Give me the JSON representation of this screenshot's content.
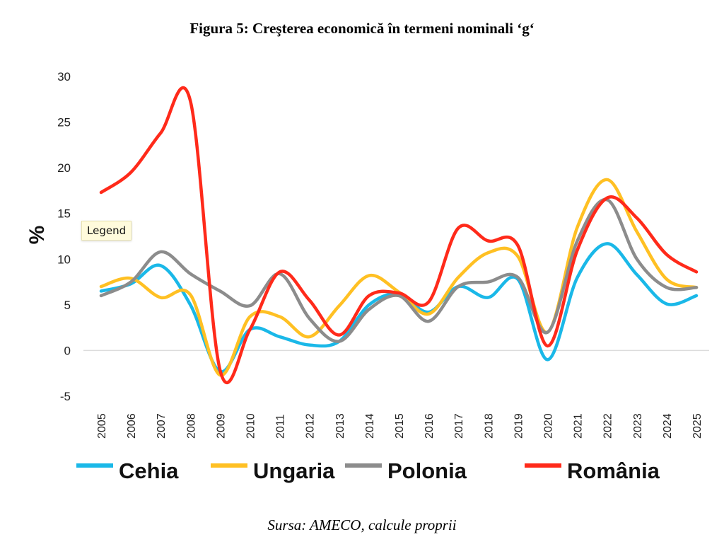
{
  "title": "Figura 5: Creşterea economică în termeni nominali ‘g‘",
  "source": "Sursa: AMECO, calcule proprii",
  "tooltip": "Legend",
  "chart_data": {
    "type": "line",
    "title": "Figura 5: Creşterea economică în termeni nominali ‘g‘",
    "xlabel": "",
    "ylabel": "%",
    "ylim": [
      -5,
      30
    ],
    "yticks": [
      -5,
      0,
      5,
      10,
      15,
      20,
      25,
      30
    ],
    "grid": "zero-line only",
    "legend_position": "bottom",
    "x": [
      "2005",
      "2006",
      "2007",
      "2008",
      "2009",
      "2010",
      "2011",
      "2012",
      "2013",
      "2014",
      "2015",
      "2016",
      "2017",
      "2018",
      "2019",
      "2020",
      "2021",
      "2022",
      "2023",
      "2024",
      "2025"
    ],
    "series": [
      {
        "name": "Cehia",
        "color": "#1ab8e8",
        "values": [
          6.5,
          7.3,
          9.3,
          5.0,
          -2.3,
          2.3,
          1.5,
          0.6,
          1.0,
          5.0,
          6.2,
          4.2,
          7.0,
          5.8,
          7.8,
          -1.0,
          8.0,
          11.7,
          8.3,
          5.1,
          6.0
        ]
      },
      {
        "name": "Ungaria",
        "color": "#ffc023",
        "values": [
          7.0,
          7.9,
          5.8,
          6.1,
          -2.7,
          3.7,
          3.7,
          1.5,
          4.9,
          8.2,
          6.4,
          4.0,
          8.0,
          10.7,
          10.3,
          2.0,
          13.5,
          18.7,
          13.0,
          7.8,
          6.9
        ]
      },
      {
        "name": "Polonia",
        "color": "#8c8c8c",
        "values": [
          6.0,
          7.5,
          10.8,
          8.4,
          6.5,
          4.9,
          8.4,
          3.5,
          1.0,
          4.5,
          6.0,
          3.2,
          7.0,
          7.5,
          8.0,
          2.0,
          12.0,
          16.5,
          10.0,
          6.9,
          6.9
        ]
      },
      {
        "name": "România",
        "color": "#ff2a1a",
        "values": [
          17.3,
          19.5,
          23.8,
          27.3,
          -2.2,
          2.3,
          8.6,
          5.5,
          1.7,
          6.0,
          6.3,
          5.3,
          13.4,
          12.0,
          11.5,
          0.5,
          11.0,
          16.7,
          14.5,
          10.5,
          8.6
        ]
      }
    ]
  }
}
